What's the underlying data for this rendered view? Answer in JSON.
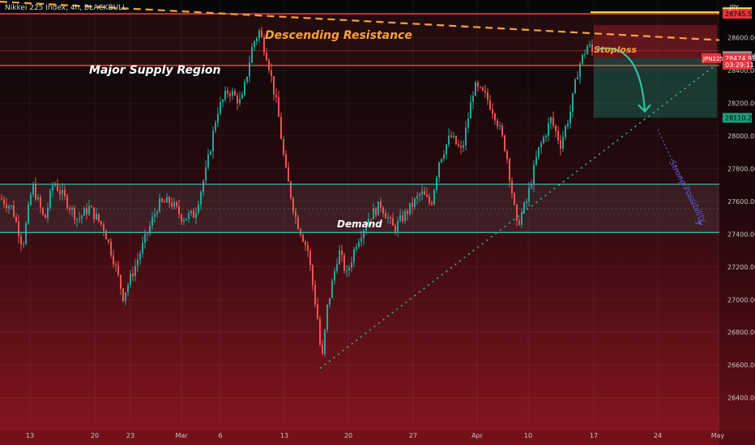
{
  "header": {
    "symbol_title": "Nikkei 225 Index, 4h, BLACKBULL",
    "currency": "JPY"
  },
  "chart_data": {
    "type": "candlestick",
    "y_axis": {
      "ticks": [
        26400,
        26600,
        26800,
        27000,
        27200,
        27400,
        27600,
        27800,
        28000,
        28200,
        28400,
        28600
      ],
      "tick_labels": [
        "26400.00",
        "26600.00",
        "26800.00",
        "27000.00",
        "27200.00",
        "27400.00",
        "27600.00",
        "27800.00",
        "28000.00",
        "28200.00",
        "28400.00",
        "28600.00"
      ],
      "range": [
        26250,
        28830
      ]
    },
    "x_axis": {
      "tick_labels": [
        "13",
        "20",
        "23",
        "Mar",
        "6",
        "13",
        "20",
        "27",
        "Apr",
        "10",
        "17",
        "24",
        "May"
      ]
    },
    "price_labels": [
      {
        "text": "28755.12",
        "value": 28755.12,
        "color": "#f5e642",
        "text_color": "#000000"
      },
      {
        "text": "28745.55",
        "value": 28745.55,
        "color": "#e3353f",
        "text_color": "#000000"
      },
      {
        "text": "28487.26",
        "value": 28487.26,
        "color": "#9a9a9a",
        "text_color": "#ffffff"
      },
      {
        "text": "28474.98",
        "value": 28474.98,
        "color": "#e3353f",
        "text_color": "#ffffff"
      },
      {
        "text": "03:29:11",
        "value": 28435,
        "color": "#e3353f",
        "text_color": "#ffffff"
      },
      {
        "text": "28110.29",
        "value": 28110.29,
        "color": "#1e9c7a",
        "text_color": "#000000"
      }
    ],
    "symbol_tag": {
      "text": "JPN225",
      "value": 28474.98
    },
    "annotations": {
      "descending_resistance": "Descending Resistance",
      "major_supply_region": "Major Supply Region",
      "stoploss": "Stoploss",
      "demand": "Demand",
      "strong_possibility": "Strong Possibility"
    },
    "levels": {
      "supply_top": 28745.55,
      "supply_bottom": 28430,
      "supply_mid": 28520,
      "demand_top": 27705,
      "demand_bottom": 27410,
      "demand_mid": 27555,
      "stoploss": 28755.12,
      "entry": 28474.98,
      "target": 28110.29
    },
    "colors": {
      "bull": "#26a69a",
      "bear": "#ef5350",
      "resistance": "#f7a23b",
      "supply_line": "#f05050",
      "demand_line": "#2fb8a8",
      "trendline": "#2fbf8a",
      "stoploss_line": "#f5e642",
      "possibility": "#5a5ad0"
    }
  }
}
